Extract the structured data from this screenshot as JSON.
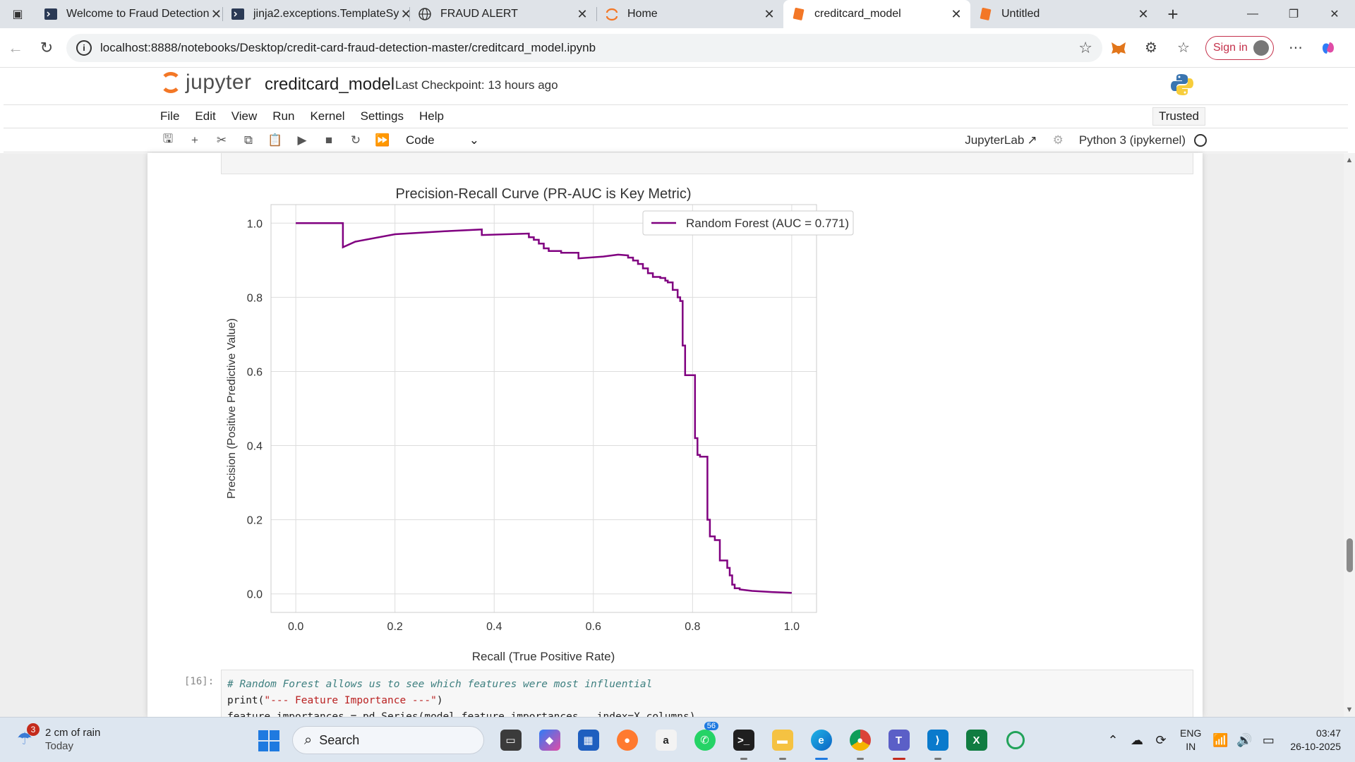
{
  "browser": {
    "tabs": [
      {
        "title": "Welcome to Fraud Detection",
        "icon": "terminal-icon"
      },
      {
        "title": "jinja2.exceptions.TemplateSy",
        "icon": "terminal-icon"
      },
      {
        "title": "FRAUD ALERT",
        "icon": "globe-icon"
      },
      {
        "title": "Home",
        "icon": "jupyter-icon"
      },
      {
        "title": "creditcard_model",
        "icon": "notebook-icon"
      },
      {
        "title": "Untitled",
        "icon": "notebook-icon"
      }
    ],
    "active_tab": 4,
    "url": "localhost:8888/notebooks/Desktop/credit-card-fraud-detection-master/creditcard_model.ipynb",
    "signin_label": "Sign in"
  },
  "jupyter": {
    "logo_text": "jupyter",
    "notebook_name": "creditcard_model",
    "checkpoint": "Last Checkpoint: 13 hours ago",
    "menu": [
      "File",
      "Edit",
      "View",
      "Run",
      "Kernel",
      "Settings",
      "Help"
    ],
    "trusted": "Trusted",
    "cell_type": "Code",
    "jupyterlab_link": "JupyterLab",
    "kernel": "Python 3 (ipykernel)"
  },
  "code_cell": {
    "prompt": "[16]:",
    "comment": "# Random Forest allows us to see which features were most influential",
    "print_fn": "print(",
    "print_str": "\"--- Feature Importance ---\"",
    "print_close": ")",
    "line3": "feature_importances = pd.Series(model.feature_importances_, index=X.columns)"
  },
  "taskbar": {
    "weather_badge": "3",
    "weather_text": "2 cm of rain",
    "weather_sub": "Today",
    "search_placeholder": "Search",
    "whatsapp_count": "56",
    "lang_top": "ENG",
    "lang_bottom": "IN",
    "time": "03:47",
    "date": "26-10-2025"
  },
  "colors": {
    "line": "#800080",
    "accent": "#f37726"
  },
  "chart_data": {
    "type": "line",
    "title": "Precision-Recall Curve (PR-AUC is Key Metric)",
    "xlabel": "Recall (True Positive Rate)",
    "ylabel": "Precision (Positive Predictive Value)",
    "xlim": [
      -0.05,
      1.05
    ],
    "ylim": [
      -0.05,
      1.05
    ],
    "xticks": [
      "0.0",
      "0.2",
      "0.4",
      "0.6",
      "0.8",
      "1.0"
    ],
    "yticks": [
      "0.0",
      "0.2",
      "0.4",
      "0.6",
      "0.8",
      "1.0"
    ],
    "grid": true,
    "legend_position": "top-right",
    "series": [
      {
        "name": "Random Forest (AUC = 0.771)",
        "x": [
          0.0,
          0.095,
          0.095,
          0.12,
          0.2,
          0.3,
          0.375,
          0.375,
          0.47,
          0.47,
          0.48,
          0.48,
          0.49,
          0.49,
          0.5,
          0.5,
          0.51,
          0.51,
          0.535,
          0.535,
          0.57,
          0.57,
          0.62,
          0.65,
          0.67,
          0.67,
          0.68,
          0.68,
          0.69,
          0.69,
          0.7,
          0.7,
          0.71,
          0.71,
          0.72,
          0.72,
          0.735,
          0.735,
          0.745,
          0.745,
          0.75,
          0.75,
          0.76,
          0.76,
          0.77,
          0.77,
          0.775,
          0.775,
          0.78,
          0.78,
          0.785,
          0.785,
          0.805,
          0.805,
          0.81,
          0.81,
          0.815,
          0.815,
          0.83,
          0.83,
          0.835,
          0.835,
          0.845,
          0.845,
          0.855,
          0.855,
          0.87,
          0.87,
          0.875,
          0.875,
          0.88,
          0.88,
          0.885,
          0.885,
          0.895,
          0.895,
          0.92,
          0.96,
          1.0
        ],
        "y": [
          1.0,
          1.0,
          0.935,
          0.95,
          0.97,
          0.978,
          0.983,
          0.968,
          0.972,
          0.962,
          0.962,
          0.955,
          0.955,
          0.945,
          0.945,
          0.932,
          0.932,
          0.925,
          0.925,
          0.92,
          0.92,
          0.905,
          0.91,
          0.915,
          0.913,
          0.907,
          0.907,
          0.899,
          0.899,
          0.89,
          0.89,
          0.878,
          0.878,
          0.865,
          0.865,
          0.855,
          0.855,
          0.852,
          0.852,
          0.845,
          0.845,
          0.84,
          0.84,
          0.82,
          0.82,
          0.8,
          0.8,
          0.79,
          0.79,
          0.67,
          0.67,
          0.59,
          0.59,
          0.42,
          0.42,
          0.375,
          0.375,
          0.37,
          0.37,
          0.2,
          0.2,
          0.155,
          0.155,
          0.145,
          0.145,
          0.09,
          0.09,
          0.07,
          0.07,
          0.05,
          0.05,
          0.025,
          0.025,
          0.015,
          0.015,
          0.012,
          0.008,
          0.005,
          0.003
        ]
      }
    ]
  }
}
